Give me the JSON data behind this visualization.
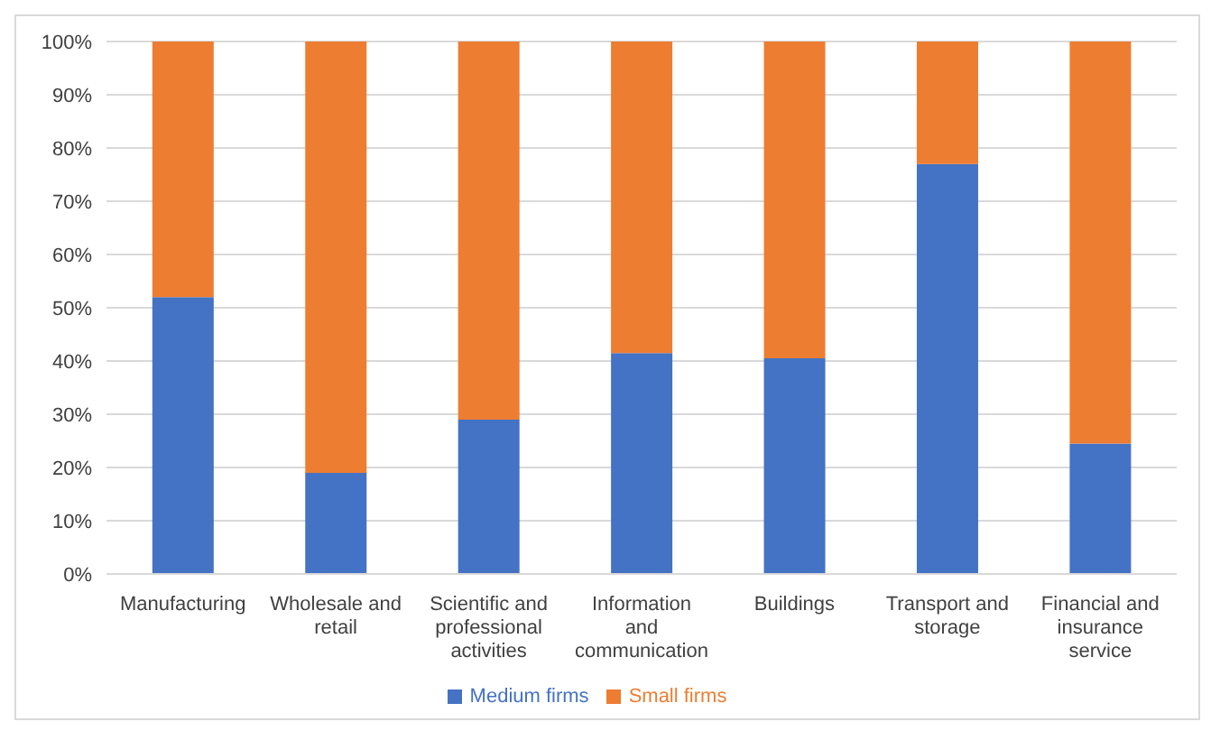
{
  "chart_data": {
    "type": "bar",
    "stacked": true,
    "categories": [
      "Manufacturing",
      "Wholesale and retail",
      "Scientific and professional activities",
      "Information and communication",
      "Buildings",
      "Transport and storage",
      "Financial and insurance service"
    ],
    "series": [
      {
        "name": "Medium firms",
        "color": "#4472c4",
        "values": [
          52,
          19,
          29,
          41.5,
          40.5,
          77,
          24.5
        ]
      },
      {
        "name": "Small firms",
        "color": "#ed7d31",
        "values": [
          48,
          81,
          71,
          58.5,
          59.5,
          23,
          75.5
        ]
      }
    ],
    "ylim": [
      0,
      100
    ],
    "yticks": [
      {
        "value": 0,
        "label": "0%"
      },
      {
        "value": 10,
        "label": "10%"
      },
      {
        "value": 20,
        "label": "20%"
      },
      {
        "value": 30,
        "label": "30%"
      },
      {
        "value": 40,
        "label": "40%"
      },
      {
        "value": 50,
        "label": "50%"
      },
      {
        "value": 60,
        "label": "60%"
      },
      {
        "value": 70,
        "label": "70%"
      },
      {
        "value": 80,
        "label": "80%"
      },
      {
        "value": 90,
        "label": "90%"
      },
      {
        "value": 100,
        "label": "100%"
      }
    ],
    "grid": "y",
    "legend": "bottom"
  }
}
